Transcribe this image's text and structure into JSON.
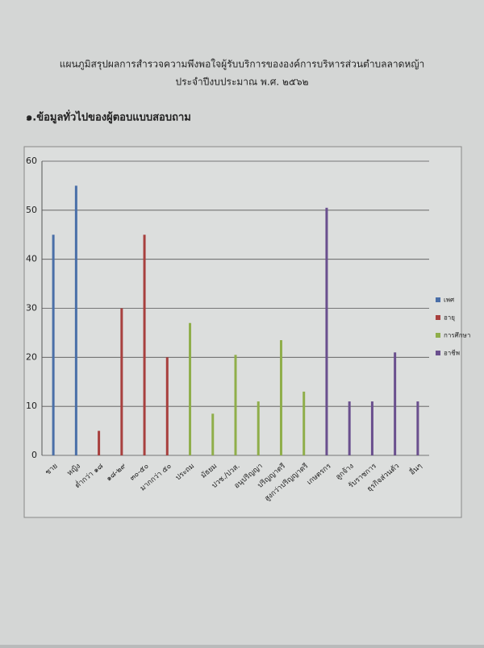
{
  "heading": "๑.ข้อมูลทั่วไปของผู้ตอบแบบสอบถาม",
  "chart_data": {
    "type": "bar",
    "title": "แผนภูมิสรุปผลการสำรวจความพึงพอใจผู้รับบริการขององค์การบริหารส่วนตำบลลาดหญ้า",
    "subtitle": "ประจำปีงบประมาณ พ.ศ. ๒๕๖๒",
    "categories": [
      "ชาย",
      "หญิง",
      "ต่ำกว่า ๑๘",
      "๑๘-๒๙",
      "๓๐-๕๐",
      "มากกว่า ๕๐",
      "ประถม",
      "มัธยม",
      "ปวช./ปวส.",
      "อนุปริญญา",
      "ปริญญาตรี",
      "สูงกว่าปริญญาตรี",
      "เกษตรกร",
      "ลูกจ้าง",
      "รับราชการ",
      "ธุรกิจส่วนตัว",
      "อื่นๆ"
    ],
    "series": [
      {
        "name": "เพศ",
        "color": "#4a6fa8",
        "values": [
          45,
          55,
          null,
          null,
          null,
          null,
          null,
          null,
          null,
          null,
          null,
          null,
          null,
          null,
          null,
          null,
          null
        ]
      },
      {
        "name": "อายุ",
        "color": "#a8403e",
        "values": [
          null,
          null,
          5,
          30,
          45,
          20,
          null,
          null,
          null,
          null,
          null,
          null,
          null,
          null,
          null,
          null,
          null
        ]
      },
      {
        "name": "การศึกษา",
        "color": "#8fae4a",
        "values": [
          null,
          null,
          null,
          null,
          null,
          null,
          27,
          8.5,
          20.5,
          11,
          23.5,
          13,
          null,
          null,
          null,
          null,
          null
        ]
      },
      {
        "name": "อาชีพ",
        "color": "#6a4f8e",
        "values": [
          null,
          null,
          null,
          null,
          null,
          null,
          null,
          null,
          null,
          null,
          null,
          null,
          50.5,
          11,
          11,
          21,
          11
        ]
      }
    ],
    "ylim": [
      0,
      60
    ],
    "yticks": [
      0,
      10,
      20,
      30,
      40,
      50,
      60
    ],
    "grid": true,
    "legend": "right"
  }
}
